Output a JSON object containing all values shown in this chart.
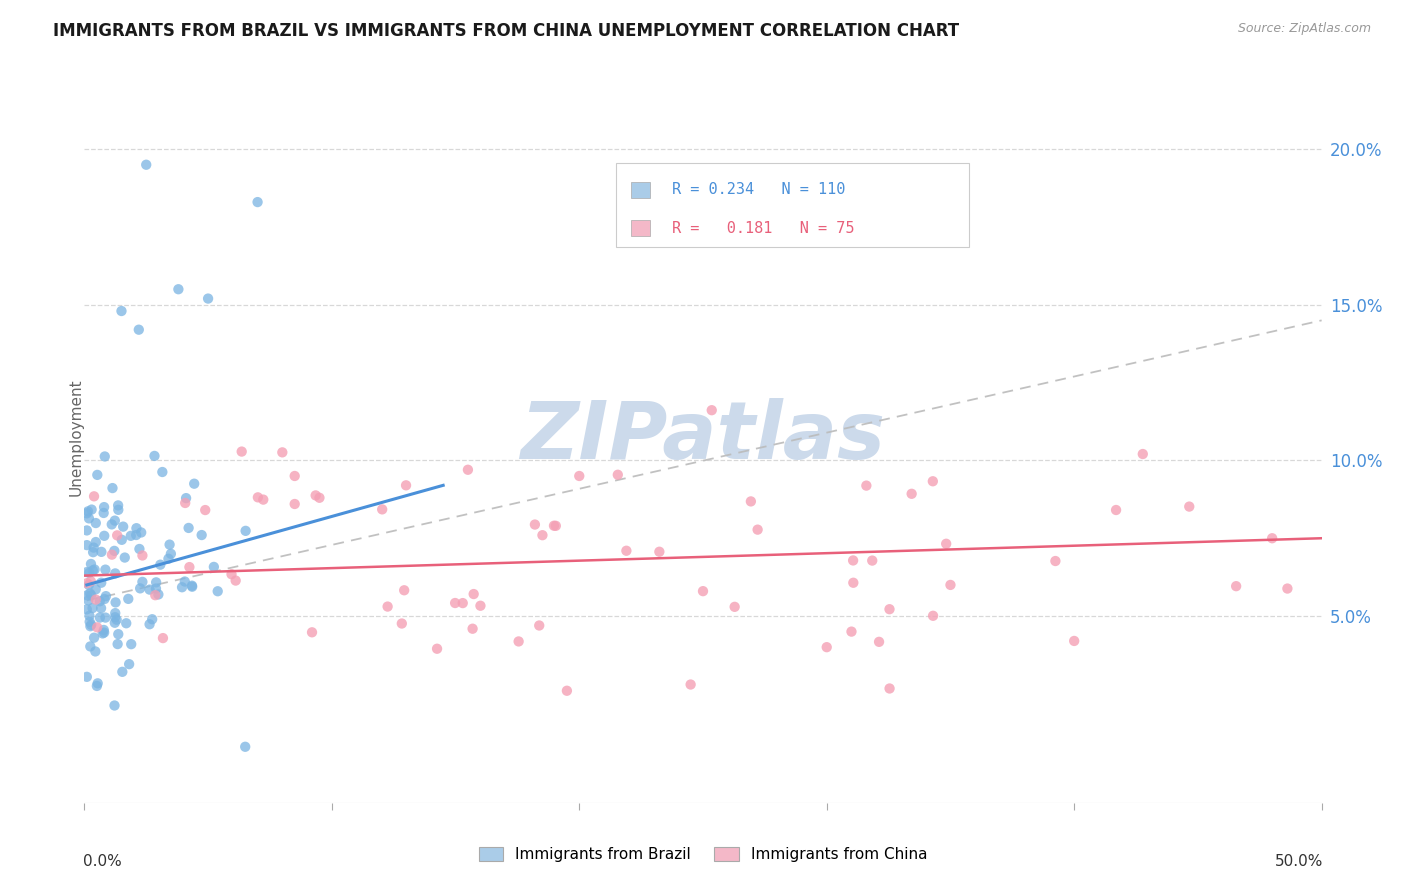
{
  "title": "IMMIGRANTS FROM BRAZIL VS IMMIGRANTS FROM CHINA UNEMPLOYMENT CORRELATION CHART",
  "source": "Source: ZipAtlas.com",
  "ylabel": "Unemployment",
  "ytick_vals": [
    0.05,
    0.1,
    0.15,
    0.2
  ],
  "ytick_labels": [
    "5.0%",
    "10.0%",
    "15.0%",
    "20.0%"
  ],
  "xlim": [
    0.0,
    0.5
  ],
  "ylim": [
    -0.01,
    0.225
  ],
  "brazil_R": "0.234",
  "brazil_N": "110",
  "china_R": "0.181",
  "china_N": "75",
  "brazil_color": "#7ab4e2",
  "china_color": "#f4a0b5",
  "brazil_line_color": "#4a90d9",
  "china_line_color": "#e8607a",
  "trend_color": "#bbbbbb",
  "legend_brazil_color": "#aacce8",
  "legend_china_color": "#f4b8c8",
  "watermark": "ZIPatlas",
  "watermark_color": "#ccdaeb",
  "background_color": "#ffffff",
  "brazil_trend_x": [
    0.001,
    0.145
  ],
  "brazil_trend_y": [
    0.06,
    0.092
  ],
  "china_trend_x": [
    0.0,
    0.5
  ],
  "china_trend_y": [
    0.063,
    0.075
  ],
  "dashed_trend_x": [
    0.001,
    0.5
  ],
  "dashed_trend_y": [
    0.055,
    0.145
  ]
}
